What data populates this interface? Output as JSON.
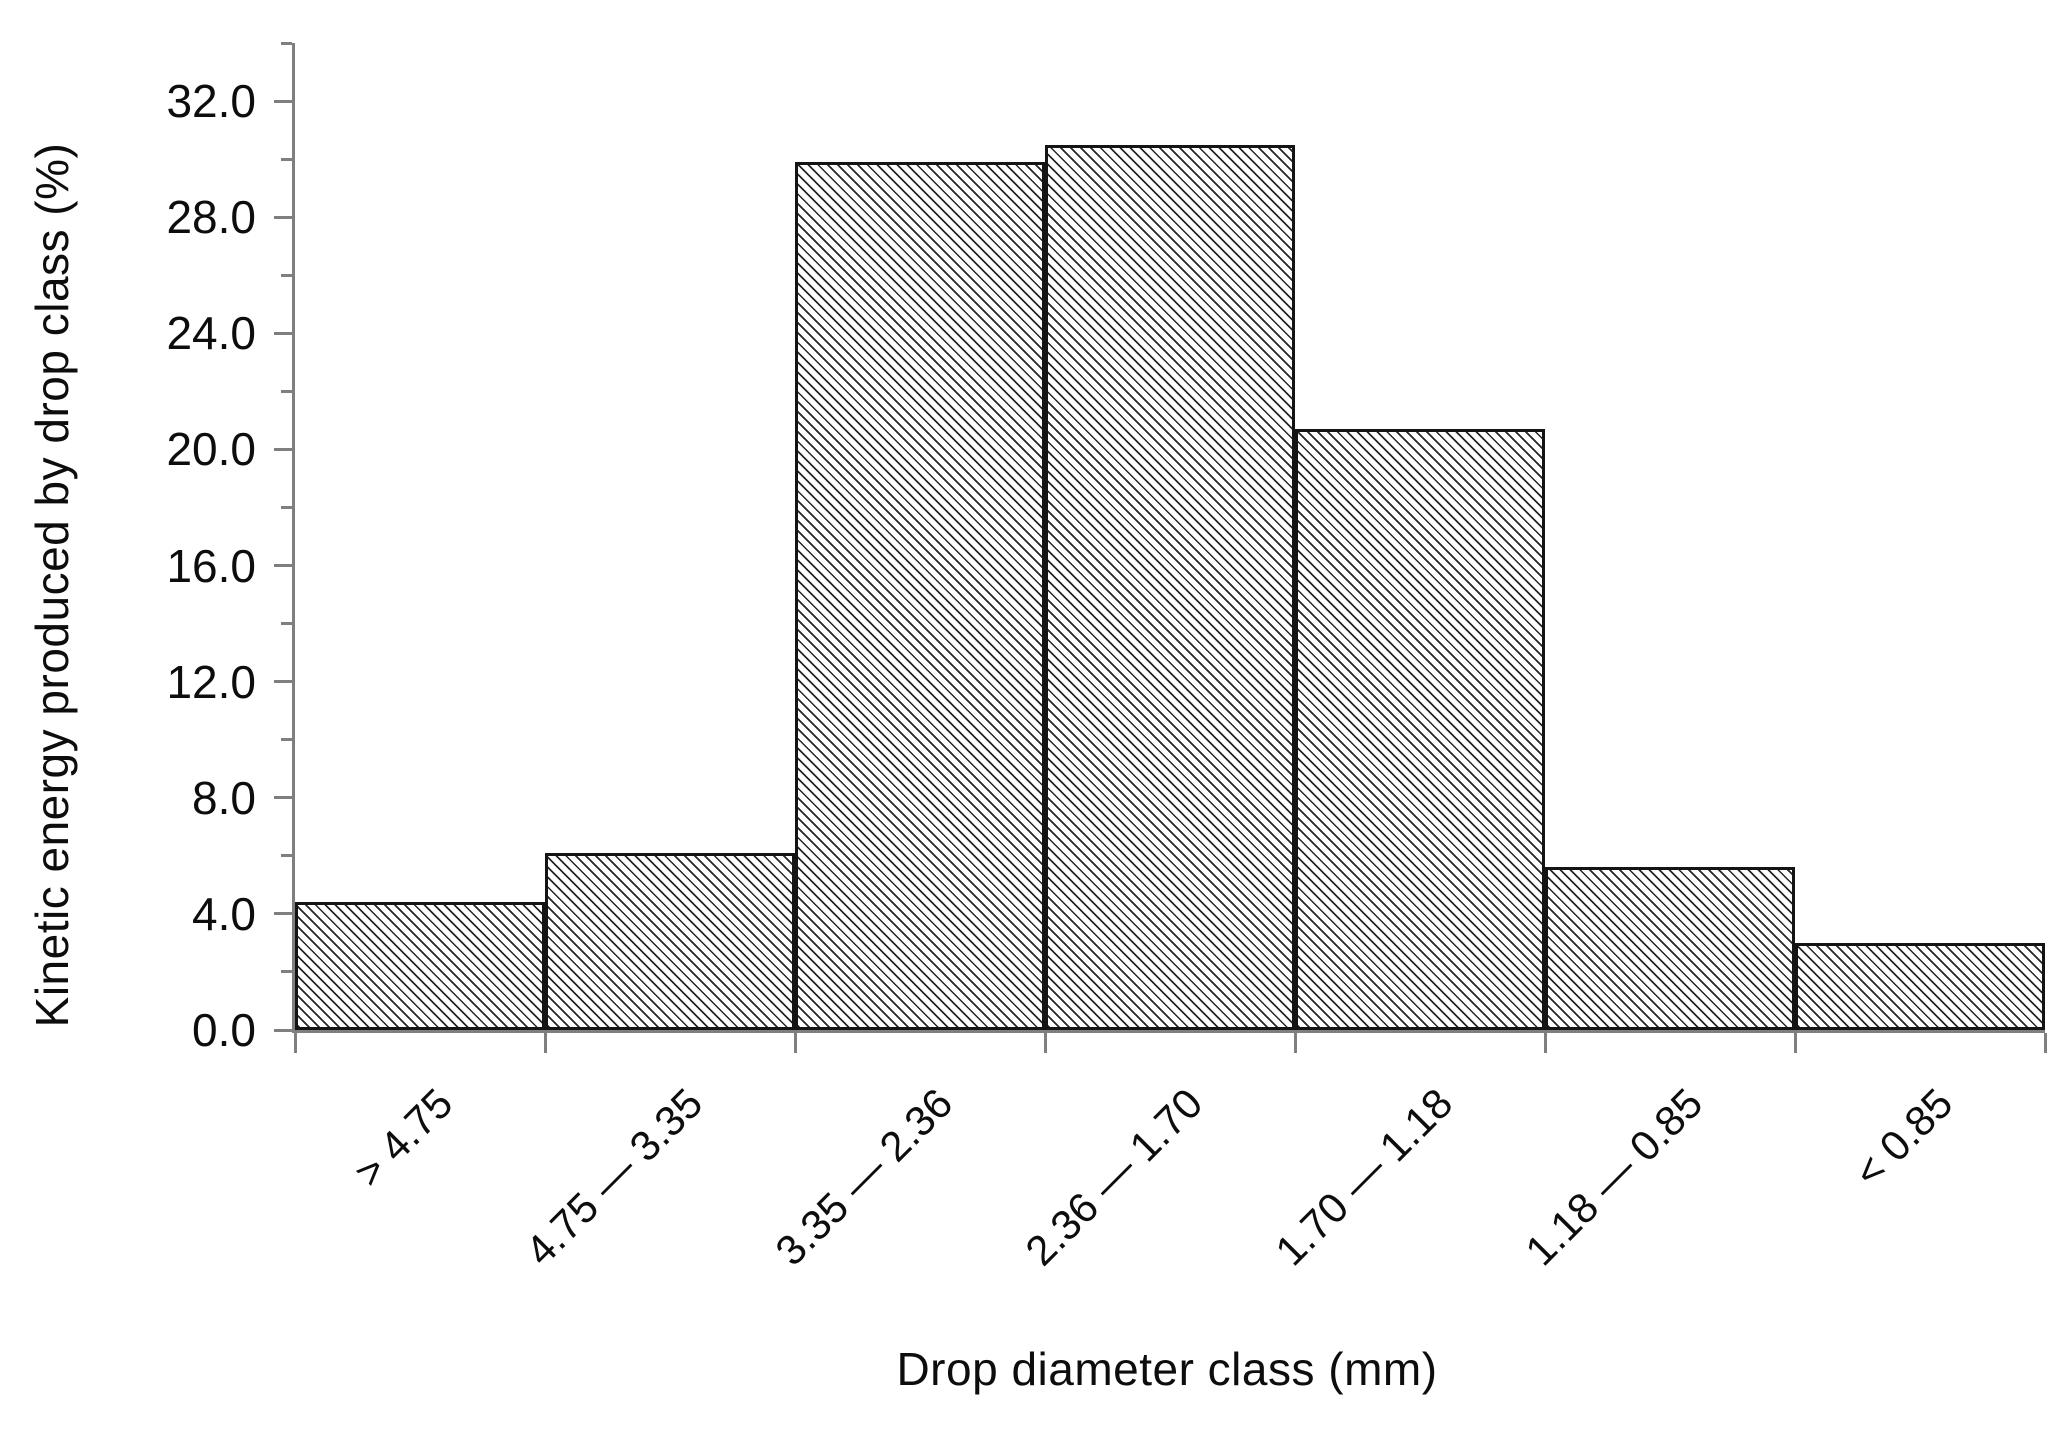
{
  "figure": {
    "background": "#ffffff",
    "axis_color": "#7f7f7f",
    "bar_border_color": "#141414",
    "hatch_color": "#141414",
    "text_color": "#0d0d0d",
    "bar_fill": "diagonal-hatch"
  },
  "chart_data": {
    "type": "bar",
    "title": "",
    "xlabel": "Drop diameter class (mm)",
    "ylabel": "Kinetic energy produced by drop class (%)",
    "categories": [
      "> 4.75",
      "4.75 — 3.35",
      "3.35 — 2.36",
      "2.36 — 1.70",
      "1.70 — 1.18",
      "1.18 — 0.85",
      "< 0.85"
    ],
    "values": [
      4.4,
      6.1,
      29.9,
      30.5,
      20.7,
      5.6,
      3.0
    ],
    "ylim": [
      0,
      34
    ],
    "ytick_major_values": [
      0,
      4,
      8,
      12,
      16,
      20,
      24,
      28,
      32
    ],
    "ytick_major_labels": [
      "0.0",
      "4.0",
      "8.0",
      "12.0",
      "16.0",
      "20.0",
      "24.0",
      "28.0",
      "32.0"
    ],
    "ytick_minor_values": [
      2,
      6,
      10,
      14,
      18,
      22,
      26,
      30,
      34
    ],
    "grid": false,
    "legend": null,
    "bar_gap": 0
  }
}
